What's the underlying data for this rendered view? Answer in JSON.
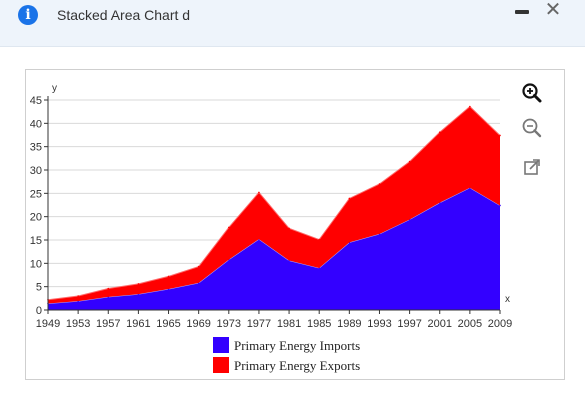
{
  "header": {
    "title": "Stacked Area Chart d",
    "info_icon": "info-icon",
    "minimize_icon": "minimize-icon",
    "close_icon": "close-icon",
    "background": "#eef4fb"
  },
  "toolbar": {
    "zoom_in_icon": "zoom-in-icon",
    "zoom_out_icon": "zoom-out-icon",
    "expand_icon": "expand-icon"
  },
  "chart_data": {
    "type": "area",
    "stacked": true,
    "title": "",
    "xlabel": "x",
    "ylabel": "y",
    "x": [
      1949,
      1953,
      1957,
      1961,
      1965,
      1969,
      1973,
      1977,
      1981,
      1985,
      1989,
      1993,
      1997,
      2001,
      2005,
      2009
    ],
    "x_ticks": [
      "1949",
      "1953",
      "1957",
      "1961",
      "1965",
      "1969",
      "1973",
      "1977",
      "1981",
      "1985",
      "1989",
      "1993",
      "1997",
      "2001",
      "2005",
      "2009"
    ],
    "ylim": [
      0,
      45
    ],
    "y_ticks": [
      0,
      5,
      10,
      15,
      20,
      25,
      30,
      35,
      40,
      45
    ],
    "grid": true,
    "legend_position": "bottom-center",
    "series": [
      {
        "name": "Primary Energy Imports",
        "color": "#3300ff",
        "values": [
          1.4,
          1.9,
          2.8,
          3.4,
          4.5,
          5.8,
          10.8,
          15.2,
          10.6,
          9,
          14.5,
          16.3,
          19.4,
          23,
          26.2,
          22.4
        ]
      },
      {
        "name": "Primary Energy Exports",
        "color": "#ff0000",
        "values": [
          0.8,
          1.1,
          1.8,
          2.2,
          2.7,
          3.5,
          6.9,
          10.0,
          6.9,
          6.1,
          9.4,
          10.7,
          12.4,
          15.1,
          17.4,
          15.0
        ]
      }
    ]
  }
}
